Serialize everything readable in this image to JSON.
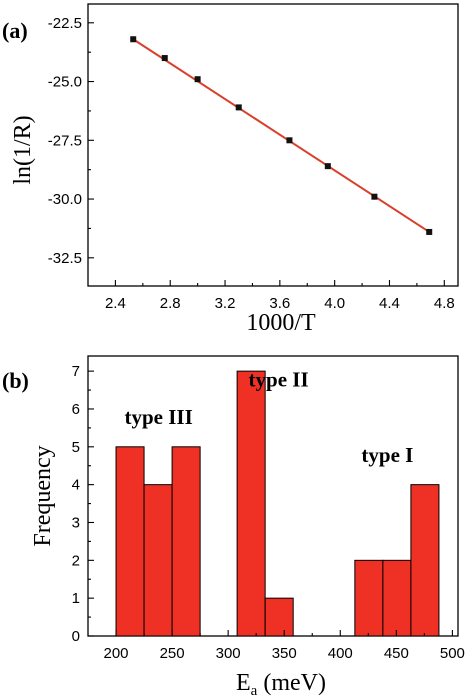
{
  "chart_data": [
    {
      "panel_label": "(a)",
      "type": "scatter",
      "xlabel": "1000/T",
      "ylabel": "ln(1/R)",
      "xlim": [
        2.2,
        4.9
      ],
      "ylim": [
        -33.7,
        -21.7
      ],
      "x_ticks": [
        "2.4",
        "2.8",
        "3.2",
        "3.6",
        "4.0",
        "4.4",
        "4.8"
      ],
      "y_ticks": [
        "-22.5",
        "-25.0",
        "-27.5",
        "-30.0",
        "-32.5"
      ],
      "x": [
        2.53,
        2.76,
        3.0,
        3.3,
        3.67,
        3.95,
        4.29,
        4.69
      ],
      "y": [
        -23.2,
        -24.0,
        -24.9,
        -26.1,
        -27.5,
        -28.6,
        -29.9,
        -31.4
      ],
      "fit_line": {
        "x": [
          2.53,
          4.69
        ],
        "y": [
          -23.2,
          -31.4
        ]
      },
      "colors": {
        "points": "#111111",
        "fit": "#d9402b"
      }
    },
    {
      "panel_label": "(b)",
      "type": "bar",
      "xlabel": "E",
      "xlabel_sub": "a",
      "xlabel_unit": " (meV)",
      "ylabel": "Frequency",
      "xlim": [
        175,
        505
      ],
      "ylim": [
        0,
        7.4
      ],
      "x_ticks": [
        "200",
        "250",
        "300",
        "350",
        "400",
        "450",
        "500"
      ],
      "y_ticks": [
        "0",
        "1",
        "2",
        "3",
        "4",
        "5",
        "6",
        "7"
      ],
      "bins": [
        {
          "start": 200,
          "end": 225,
          "value": 5
        },
        {
          "start": 225,
          "end": 250,
          "value": 4
        },
        {
          "start": 250,
          "end": 275,
          "value": 5
        },
        {
          "start": 308,
          "end": 333,
          "value": 7
        },
        {
          "start": 333,
          "end": 358,
          "value": 1
        },
        {
          "start": 413,
          "end": 438,
          "value": 2
        },
        {
          "start": 438,
          "end": 463,
          "value": 2
        },
        {
          "start": 463,
          "end": 488,
          "value": 4
        }
      ],
      "annotations": [
        {
          "text": "type III",
          "x": 238,
          "y": 5.6
        },
        {
          "text": "type II",
          "x": 345,
          "y": 6.6
        },
        {
          "text": "type I",
          "x": 442,
          "y": 4.6
        }
      ],
      "colors": {
        "bars": "#ee3124"
      }
    }
  ]
}
